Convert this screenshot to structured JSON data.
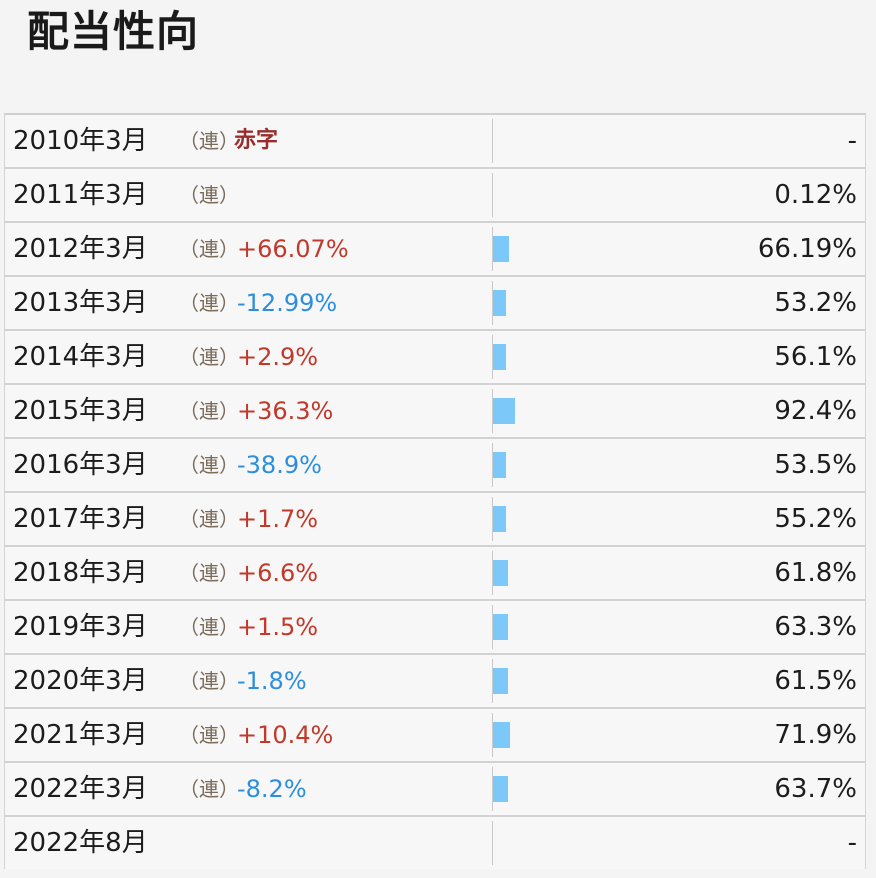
{
  "title": "配当性向",
  "colors": {
    "increase": "#c0392b",
    "decrease": "#2e8ede",
    "deficit": "#9b2c2c",
    "bar": "#7cc8f8"
  },
  "rows": [
    {
      "period": "2010年3月",
      "consolidated": "（連）",
      "change": "赤字",
      "change_type": "deficit",
      "value": "-",
      "bar_fraction": 0
    },
    {
      "period": "2011年3月",
      "consolidated": "（連）",
      "change": "",
      "change_type": "",
      "value": "0.12%",
      "bar_fraction": 0
    },
    {
      "period": "2012年3月",
      "consolidated": "（連）",
      "change": "+66.07%",
      "change_type": "up",
      "value": "66.19%",
      "bar_fraction": 0.6619
    },
    {
      "period": "2013年3月",
      "consolidated": "（連）",
      "change": "-12.99%",
      "change_type": "down",
      "value": "53.2%",
      "bar_fraction": 0.532
    },
    {
      "period": "2014年3月",
      "consolidated": "（連）",
      "change": "+2.9%",
      "change_type": "up",
      "value": "56.1%",
      "bar_fraction": 0.561
    },
    {
      "period": "2015年3月",
      "consolidated": "（連）",
      "change": "+36.3%",
      "change_type": "up",
      "value": "92.4%",
      "bar_fraction": 0.924
    },
    {
      "period": "2016年3月",
      "consolidated": "（連）",
      "change": "-38.9%",
      "change_type": "down",
      "value": "53.5%",
      "bar_fraction": 0.535
    },
    {
      "period": "2017年3月",
      "consolidated": "（連）",
      "change": "+1.7%",
      "change_type": "up",
      "value": "55.2%",
      "bar_fraction": 0.552
    },
    {
      "period": "2018年3月",
      "consolidated": "（連）",
      "change": "+6.6%",
      "change_type": "up",
      "value": "61.8%",
      "bar_fraction": 0.618
    },
    {
      "period": "2019年3月",
      "consolidated": "（連）",
      "change": "+1.5%",
      "change_type": "up",
      "value": "63.3%",
      "bar_fraction": 0.633
    },
    {
      "period": "2020年3月",
      "consolidated": "（連）",
      "change": "-1.8%",
      "change_type": "down",
      "value": "61.5%",
      "bar_fraction": 0.615
    },
    {
      "period": "2021年3月",
      "consolidated": "（連）",
      "change": "+10.4%",
      "change_type": "up",
      "value": "71.9%",
      "bar_fraction": 0.719
    },
    {
      "period": "2022年3月",
      "consolidated": "（連）",
      "change": "-8.2%",
      "change_type": "down",
      "value": "63.7%",
      "bar_fraction": 0.637
    },
    {
      "period": "2022年8月",
      "consolidated": "",
      "change": "",
      "change_type": "",
      "value": "-",
      "bar_fraction": 0
    }
  ]
}
